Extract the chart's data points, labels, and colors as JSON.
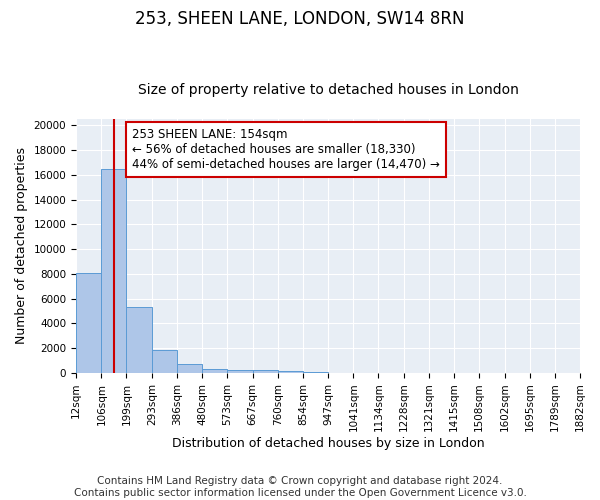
{
  "title_line1": "253, SHEEN LANE, LONDON, SW14 8RN",
  "title_line2": "Size of property relative to detached houses in London",
  "xlabel": "Distribution of detached houses by size in London",
  "ylabel": "Number of detached properties",
  "bin_edges": [
    12,
    106,
    199,
    293,
    386,
    480,
    573,
    667,
    760,
    854,
    947,
    1041,
    1134,
    1228,
    1321,
    1415,
    1508,
    1602,
    1695,
    1789,
    1882
  ],
  "bar_heights": [
    8100,
    16500,
    5300,
    1850,
    700,
    300,
    200,
    200,
    150,
    50,
    30,
    20,
    15,
    10,
    8,
    5,
    4,
    3,
    2,
    2
  ],
  "bar_color": "#aec6e8",
  "bar_edge_color": "#5b9bd5",
  "background_color": "#e8eef5",
  "grid_color": "#ffffff",
  "property_size": 154,
  "property_line_color": "#cc0000",
  "annotation_text": "253 SHEEN LANE: 154sqm\n← 56% of detached houses are smaller (18,330)\n44% of semi-detached houses are larger (14,470) →",
  "annotation_box_color": "#ffffff",
  "annotation_box_edge_color": "#cc0000",
  "ylim": [
    0,
    20500
  ],
  "yticks": [
    0,
    2000,
    4000,
    6000,
    8000,
    10000,
    12000,
    14000,
    16000,
    18000,
    20000
  ],
  "footer_line1": "Contains HM Land Registry data © Crown copyright and database right 2024.",
  "footer_line2": "Contains public sector information licensed under the Open Government Licence v3.0.",
  "title_fontsize": 12,
  "subtitle_fontsize": 10,
  "axis_label_fontsize": 9,
  "tick_fontsize": 7.5,
  "annotation_fontsize": 8.5,
  "footer_fontsize": 7.5,
  "fig_bg": "#ffffff"
}
